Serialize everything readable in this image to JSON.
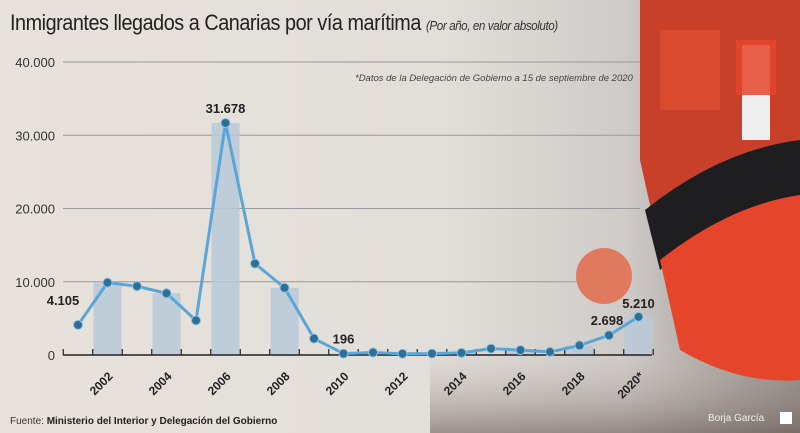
{
  "header": {
    "title": "Inmigrantes llegados a Canarias por vía marítima",
    "subtitle": "(Por año, en valor absoluto)"
  },
  "note": "*Datos de la Delegación de Gobierno a 15 de septiembre de 2020",
  "footer": {
    "source_label": "Fuente:",
    "source": "Ministerio del Interior y Delegación del Gobierno",
    "credit": "Borja García"
  },
  "colors": {
    "line": "#5aa6d6",
    "marker": "#2f6f96",
    "bar": "#b9c9d8",
    "grid": "#9a9a9a",
    "boat": "#e5452a"
  },
  "chart_data": {
    "type": "line",
    "title": "Inmigrantes llegados a Canarias por vía marítima",
    "subtitle": "(Por año, en valor absoluto)",
    "x": [
      2001,
      2002,
      2003,
      2004,
      2005,
      2006,
      2007,
      2008,
      2009,
      2010,
      2011,
      2012,
      2013,
      2014,
      2015,
      2016,
      2017,
      2018,
      2019,
      2020
    ],
    "values": [
      4105,
      9875,
      9388,
      8426,
      4715,
      31678,
      12478,
      9181,
      2246,
      196,
      340,
      173,
      196,
      296,
      874,
      671,
      421,
      1307,
      2698,
      5210
    ],
    "bars_on": [
      2002,
      2004,
      2006,
      2008,
      2010,
      2012,
      2014,
      2016,
      2018,
      2020
    ],
    "ylim": [
      0,
      40000
    ],
    "yticks": [
      "0",
      "10.000",
      "20.000",
      "30.000",
      "40.000"
    ],
    "yticks_values": [
      0,
      10000,
      20000,
      30000,
      40000
    ],
    "xtick_labels": [
      "2002",
      "2004",
      "2006",
      "2008",
      "2010",
      "2012",
      "2014",
      "2016",
      "2018",
      "2020*"
    ],
    "xtick_years": [
      2002,
      2004,
      2006,
      2008,
      2010,
      2012,
      2014,
      2016,
      2018,
      2020
    ],
    "data_labels": [
      {
        "year": 2001,
        "text": "4.105"
      },
      {
        "year": 2006,
        "text": "31.678"
      },
      {
        "year": 2010,
        "text": "196"
      },
      {
        "year": 2019,
        "text": "2.698"
      },
      {
        "year": 2020,
        "text": "5.210"
      }
    ],
    "grid": true
  }
}
